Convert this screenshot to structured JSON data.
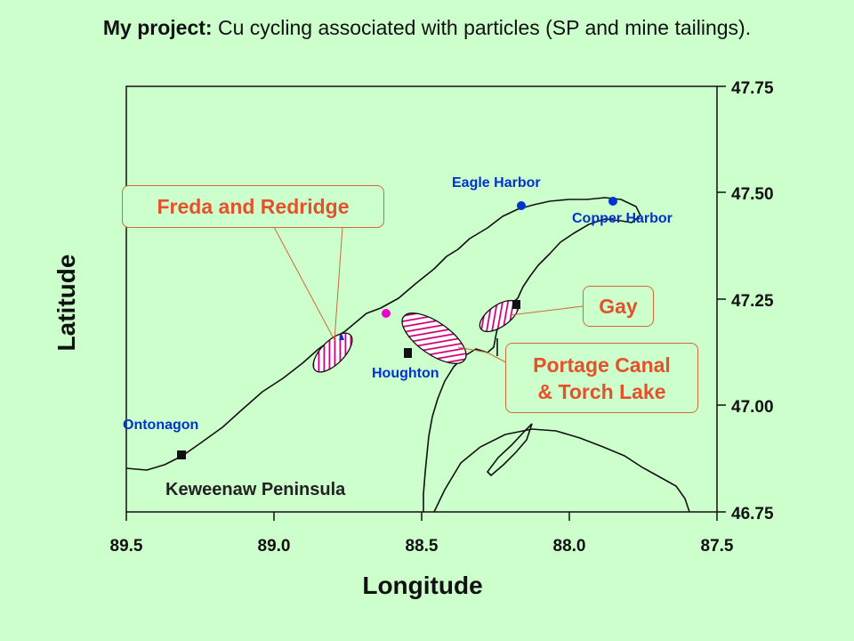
{
  "title": {
    "bold": "My project:",
    "rest": " Cu cycling associated with particles (SP and mine tailings)."
  },
  "axes": {
    "x_title": "Longitude",
    "y_title": "Latitude",
    "x_ticks": [
      "89.5",
      "89.0",
      "88.5",
      "88.0",
      "87.5"
    ],
    "y_ticks": [
      "47.75",
      "47.50",
      "47.25",
      "47.00",
      "46.75"
    ]
  },
  "places": {
    "eagle_harbor": "Eagle Harbor",
    "copper_harbor": "Copper Harbor",
    "houghton": "Houghton",
    "ontonagon": "Ontonagon"
  },
  "region_label": "Keweenaw Peninsula",
  "callouts": {
    "freda": "Freda and Redridge",
    "gay": "Gay",
    "portage_line1": "Portage Canal",
    "portage_line2": "& Torch Lake"
  },
  "colors": {
    "background": "#ccffcc",
    "callout_text": "#e4512a",
    "place_text": "#0033cc",
    "site_hatch": "#cc0077"
  }
}
